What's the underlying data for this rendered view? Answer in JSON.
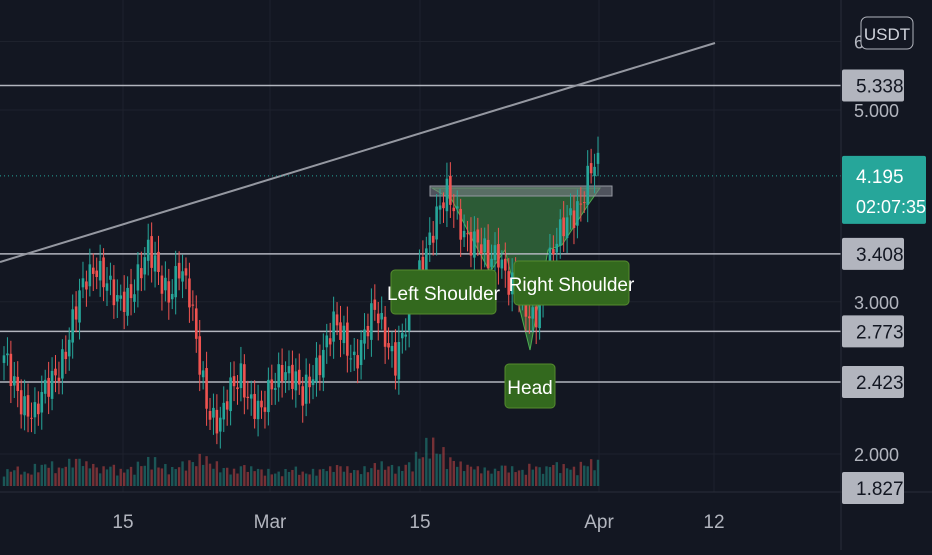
{
  "colors": {
    "background": "#131722",
    "grid": "#1e222d",
    "axis_text": "#b2b5be",
    "level_line": "#b2b5be",
    "trend_line": "#9598a1",
    "up": "#26a69a",
    "down": "#ef5350",
    "price_tag": "#26a69a",
    "level_tag": "#b2b5be",
    "pattern_fill": "#4caf50",
    "annotation": "#33691e",
    "neckline": "#787b86"
  },
  "currency_badge": "USDT",
  "chart_data": {
    "type": "candlestick",
    "scale": "log",
    "x_ticks": [
      "15",
      "Mar",
      "15",
      "Apr",
      "12"
    ],
    "y_ticks": [
      "6.000",
      "5.000",
      "3.000",
      "2.000"
    ],
    "y_range": [
      1.8,
      6.2
    ],
    "horizontal_levels": [
      5.338,
      3.408,
      2.773,
      2.423
    ],
    "level_labels": [
      "5.338",
      "3.408",
      "2.773",
      "2.423",
      "1.827"
    ],
    "current_price": {
      "value": 4.195,
      "label": "4.195",
      "countdown": "02:07:35"
    },
    "annotations": [
      "Left Shoulder",
      "Head",
      "Right Shoulder"
    ],
    "pattern": "inverse head and shoulders",
    "close_series": [
      2.55,
      2.42,
      2.3,
      2.2,
      2.35,
      2.5,
      2.65,
      2.9,
      3.2,
      3.35,
      3.15,
      2.95,
      3.05,
      3.25,
      3.4,
      3.2,
      3.1,
      3.3,
      3.0,
      2.55,
      2.25,
      2.15,
      2.35,
      2.5,
      2.3,
      2.2,
      2.4,
      2.55,
      2.45,
      2.3,
      2.5,
      2.65,
      2.8,
      2.7,
      2.6,
      2.75,
      2.9,
      2.75,
      2.6,
      2.8,
      3.1,
      3.5,
      3.8,
      3.95,
      3.75,
      3.6,
      3.5,
      3.3,
      3.45,
      3.2,
      3.05,
      2.85,
      3.0,
      3.35,
      3.55,
      3.8,
      3.95,
      4.25
    ],
    "volume_series": [
      0.35,
      0.4,
      0.3,
      0.45,
      0.5,
      0.4,
      0.55,
      0.6,
      0.5,
      0.4,
      0.45,
      0.35,
      0.4,
      0.5,
      0.6,
      0.45,
      0.4,
      0.5,
      0.55,
      0.65,
      0.5,
      0.4,
      0.35,
      0.45,
      0.4,
      0.35,
      0.3,
      0.35,
      0.4,
      0.3,
      0.35,
      0.4,
      0.45,
      0.4,
      0.35,
      0.4,
      0.5,
      0.45,
      0.4,
      0.5,
      0.7,
      1.0,
      0.8,
      0.6,
      0.5,
      0.45,
      0.4,
      0.35,
      0.45,
      0.4,
      0.35,
      0.45,
      0.4,
      0.5,
      0.45,
      0.4,
      0.5,
      0.55
    ]
  }
}
